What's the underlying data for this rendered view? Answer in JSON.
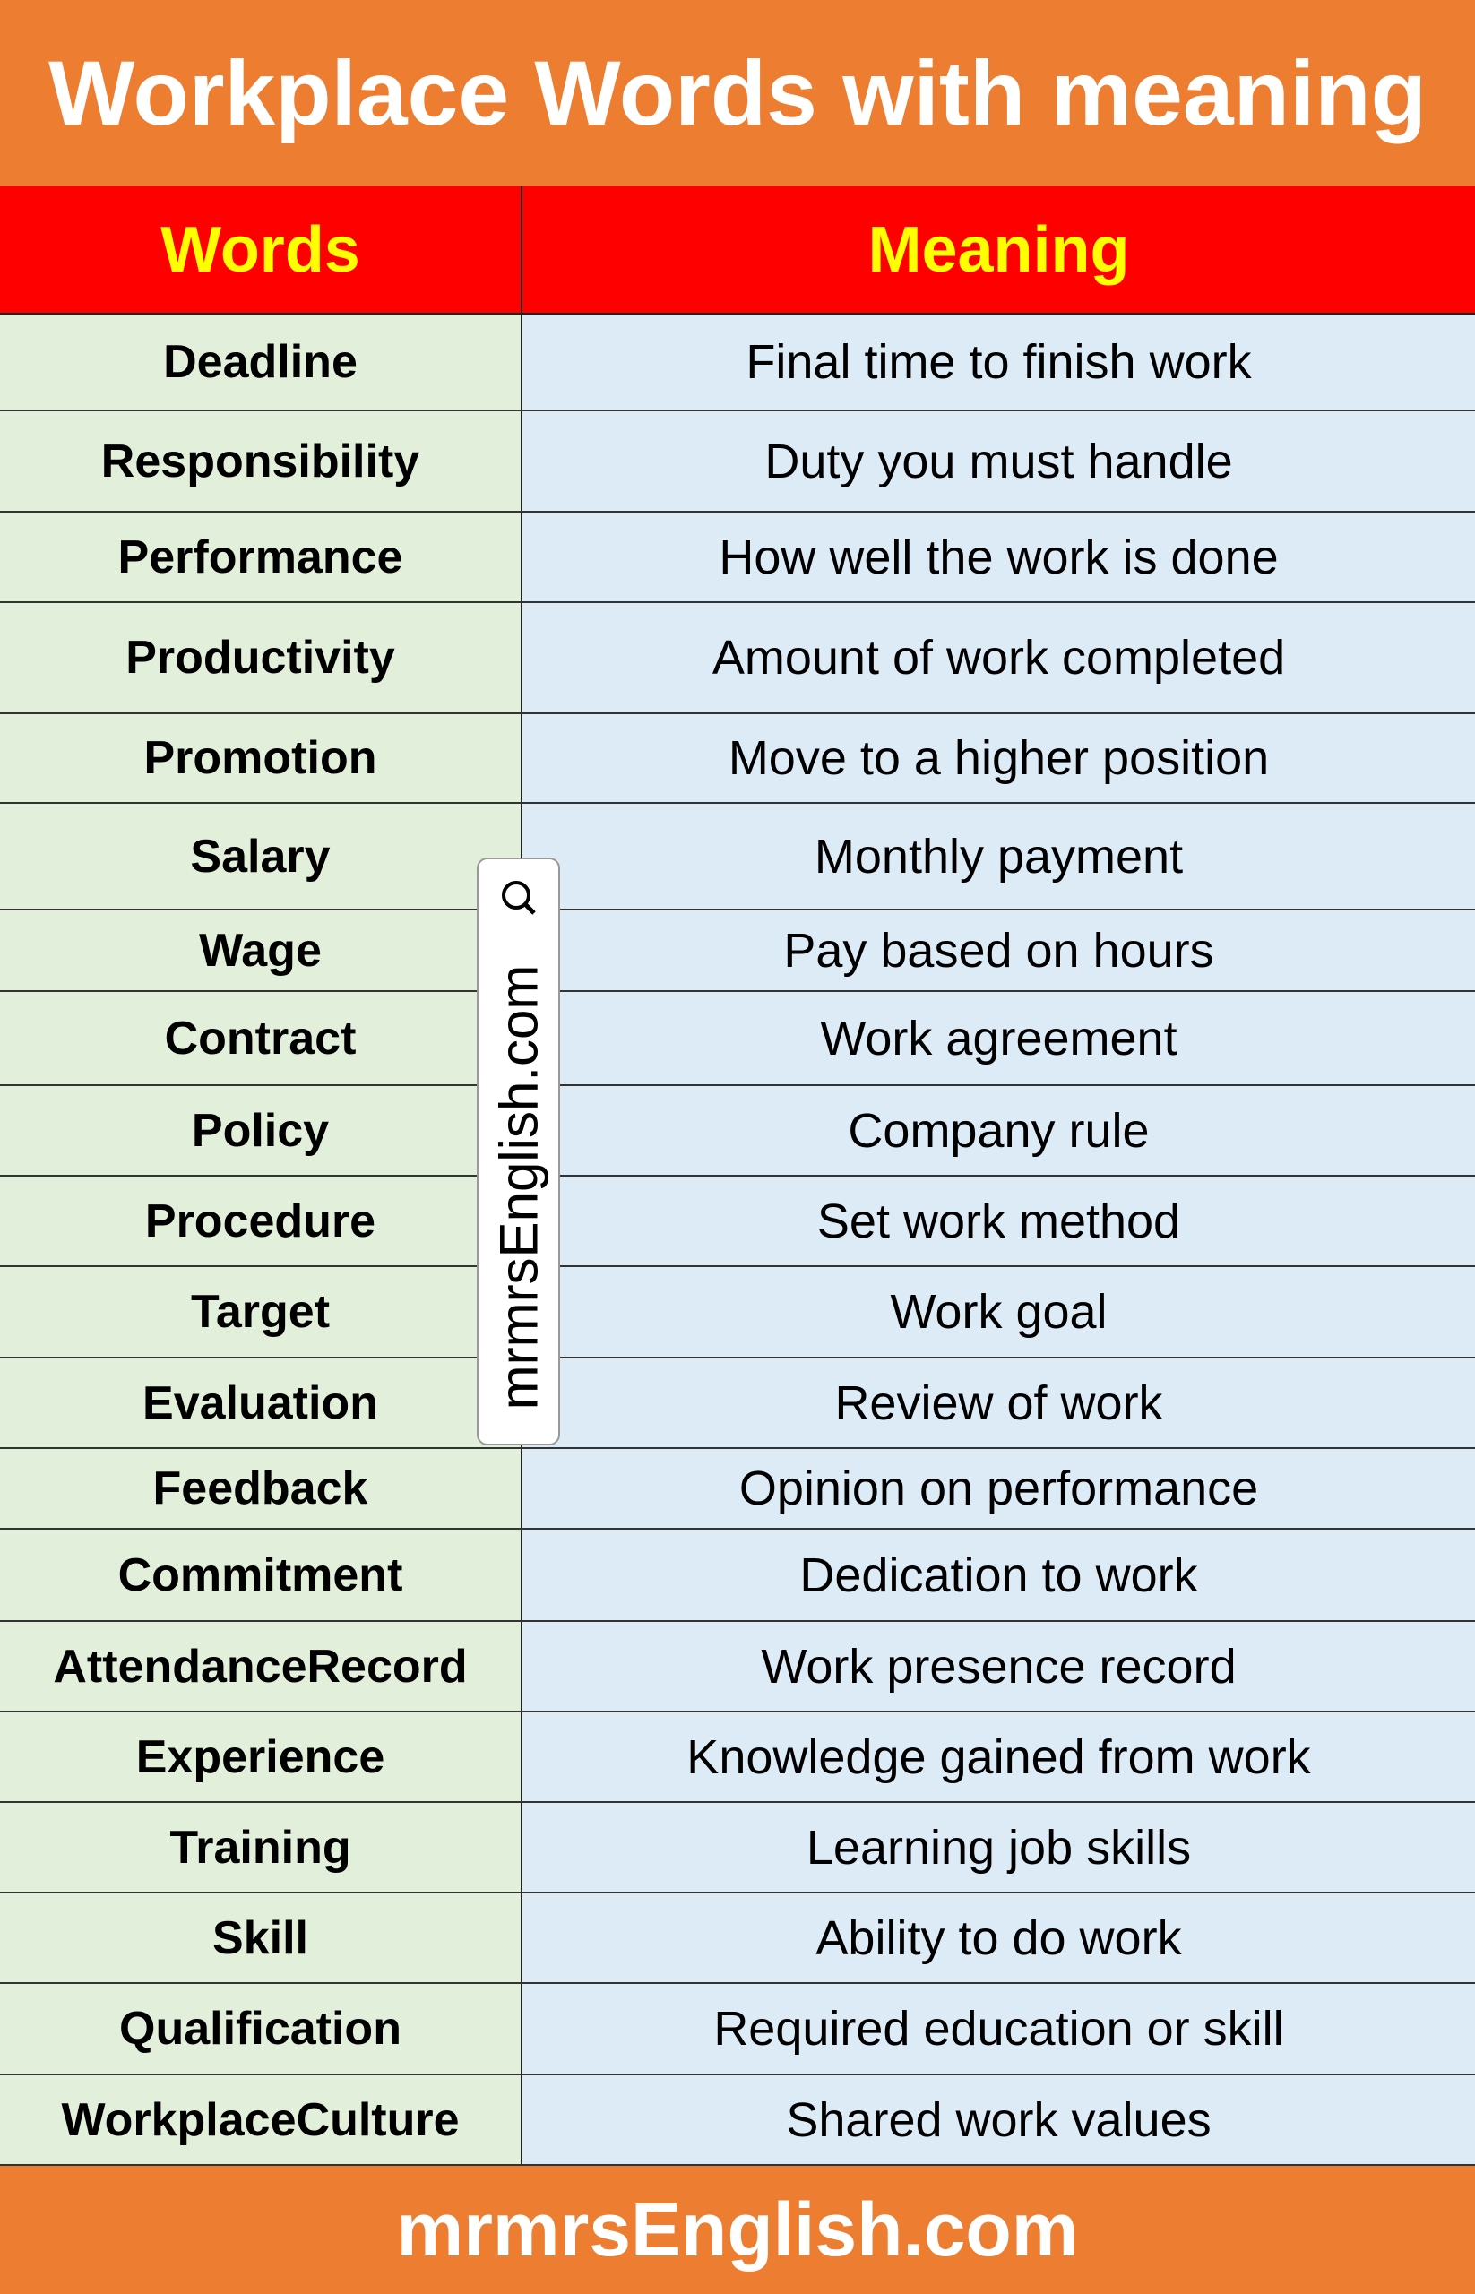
{
  "title": "Workplace Words with meaning",
  "table": {
    "headers": {
      "word": "Words",
      "meaning": "Meaning"
    },
    "rows": [
      {
        "word": "Deadline",
        "meaning": "Final time to finish work"
      },
      {
        "word": "Responsibility",
        "meaning": "Duty you must handle"
      },
      {
        "word": "Performance",
        "meaning": "How well the work is done"
      },
      {
        "word": "Productivity",
        "meaning": "Amount of work completed"
      },
      {
        "word": "Promotion",
        "meaning": "Move to a higher position"
      },
      {
        "word": "Salary",
        "meaning": "Monthly payment"
      },
      {
        "word": "Wage",
        "meaning": "Pay based on hours"
      },
      {
        "word": "Contract",
        "meaning": "Work agreement"
      },
      {
        "word": "Policy",
        "meaning": "Company rule"
      },
      {
        "word": "Procedure",
        "meaning": "Set work method"
      },
      {
        "word": "Target",
        "meaning": "Work goal"
      },
      {
        "word": "Evaluation",
        "meaning": "Review of work"
      },
      {
        "word": "Feedback",
        "meaning": "Opinion on performance"
      },
      {
        "word": "Commitment",
        "meaning": "Dedication to work"
      },
      {
        "word": "AttendanceRecord",
        "meaning": "Work presence record"
      },
      {
        "word": "Experience",
        "meaning": "Knowledge gained from work"
      },
      {
        "word": "Training",
        "meaning": "Learning job skills"
      },
      {
        "word": "Skill",
        "meaning": "Ability to do work"
      },
      {
        "word": "Qualification",
        "meaning": "Required education or skill"
      },
      {
        "word": "WorkplaceCulture",
        "meaning": "Shared work values"
      }
    ]
  },
  "watermark": "mrmrsEnglish.com",
  "footer": "mrmrsEnglish.com",
  "colors": {
    "banner": "#ED7D31",
    "header_bg": "#FF0000",
    "header_text": "#FFFF00",
    "word_bg": "#E2EFDA",
    "meaning_bg": "#DDEBF7"
  }
}
